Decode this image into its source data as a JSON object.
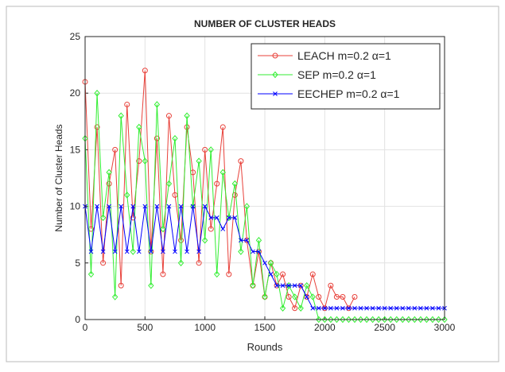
{
  "chart_data": {
    "type": "line",
    "title": "NUMBER OF CLUSTER HEADS",
    "x_label": "Rounds",
    "y_label": "Number of Cluster Heads",
    "x": [
      0,
      50,
      100,
      150,
      200,
      250,
      300,
      350,
      400,
      450,
      500,
      550,
      600,
      650,
      700,
      750,
      800,
      850,
      900,
      950,
      1000,
      1050,
      1100,
      1150,
      1200,
      1250,
      1300,
      1350,
      1400,
      1450,
      1500,
      1550,
      1600,
      1650,
      1700,
      1750,
      1800,
      1850,
      1900,
      1950,
      2000,
      2050,
      2100,
      2150,
      2200,
      2250,
      2300,
      2350,
      2400,
      2450,
      2500,
      2550,
      2600,
      2650,
      2700,
      2750,
      2800,
      2850,
      2900,
      2950,
      3000
    ],
    "series": [
      {
        "name": "LEACH m=0.2 α=1",
        "color": "#e8413a",
        "marker": "circle",
        "values": [
          21,
          8,
          17,
          5,
          12,
          15,
          3,
          19,
          9,
          14,
          22,
          6,
          16,
          4,
          18,
          11,
          7,
          17,
          13,
          5,
          15,
          8,
          12,
          17,
          4,
          11,
          14,
          7,
          3,
          6,
          2,
          5,
          3,
          4,
          2,
          1,
          3,
          2,
          4,
          2,
          1,
          3,
          2,
          2,
          1,
          2,
          null,
          null,
          null,
          null,
          null,
          null,
          null,
          null,
          null,
          null,
          null,
          null,
          null,
          null,
          null
        ]
      },
      {
        "name": "SEP m=0.2 α=1",
        "color": "#33ee33",
        "marker": "diamond",
        "values": [
          16,
          4,
          20,
          9,
          13,
          2,
          18,
          11,
          6,
          17,
          14,
          3,
          19,
          8,
          12,
          16,
          5,
          18,
          10,
          14,
          7,
          15,
          4,
          13,
          9,
          12,
          6,
          10,
          3,
          7,
          2,
          5,
          4,
          1,
          3,
          2,
          1,
          3,
          2,
          0,
          0,
          0,
          0,
          0,
          0,
          0,
          0,
          0,
          0,
          0,
          0,
          0,
          0,
          0,
          0,
          0,
          0,
          0,
          0,
          0,
          0
        ]
      },
      {
        "name": "EECHEP m=0.2 α=1",
        "color": "#0000ff",
        "marker": "x",
        "values": [
          10,
          6,
          10,
          6,
          10,
          6,
          10,
          6,
          10,
          6,
          10,
          6,
          10,
          6,
          10,
          6,
          10,
          6,
          10,
          6,
          10,
          9,
          9,
          8,
          9,
          9,
          7,
          7,
          6,
          6,
          5,
          4,
          3,
          3,
          3,
          3,
          3,
          2,
          1,
          1,
          1,
          1,
          1,
          1,
          1,
          1,
          1,
          1,
          1,
          1,
          1,
          1,
          1,
          1,
          1,
          1,
          1,
          1,
          1,
          1,
          1
        ]
      }
    ],
    "xlim": [
      0,
      3000
    ],
    "ylim": [
      0,
      25
    ],
    "xticks": [
      0,
      500,
      1000,
      1500,
      2000,
      2500,
      3000
    ],
    "yticks": [
      0,
      5,
      10,
      15,
      20,
      25
    ],
    "grid": true,
    "legend_position": "northeast"
  }
}
